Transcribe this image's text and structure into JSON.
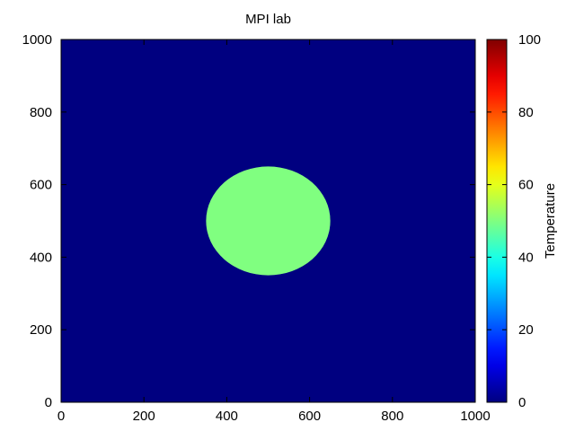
{
  "chart_data": {
    "type": "heatmap",
    "title": "MPI lab",
    "xlabel": "",
    "ylabel": "",
    "xlim": [
      0,
      1000
    ],
    "ylim": [
      0,
      1000
    ],
    "x_ticks": [
      "0",
      "200",
      "400",
      "600",
      "800",
      "1000"
    ],
    "y_ticks": [
      "0",
      "200",
      "400",
      "600",
      "800",
      "1000"
    ],
    "background_value": 0,
    "shapes": [
      {
        "shape": "circle",
        "center_x": 500,
        "center_y": 500,
        "radius": 150,
        "value": 50
      }
    ],
    "colorbar": {
      "label": "Temperature",
      "range": [
        0,
        100
      ],
      "ticks": [
        "0",
        "20",
        "40",
        "60",
        "80",
        "100"
      ],
      "colormap": "jet"
    },
    "grid": false
  }
}
